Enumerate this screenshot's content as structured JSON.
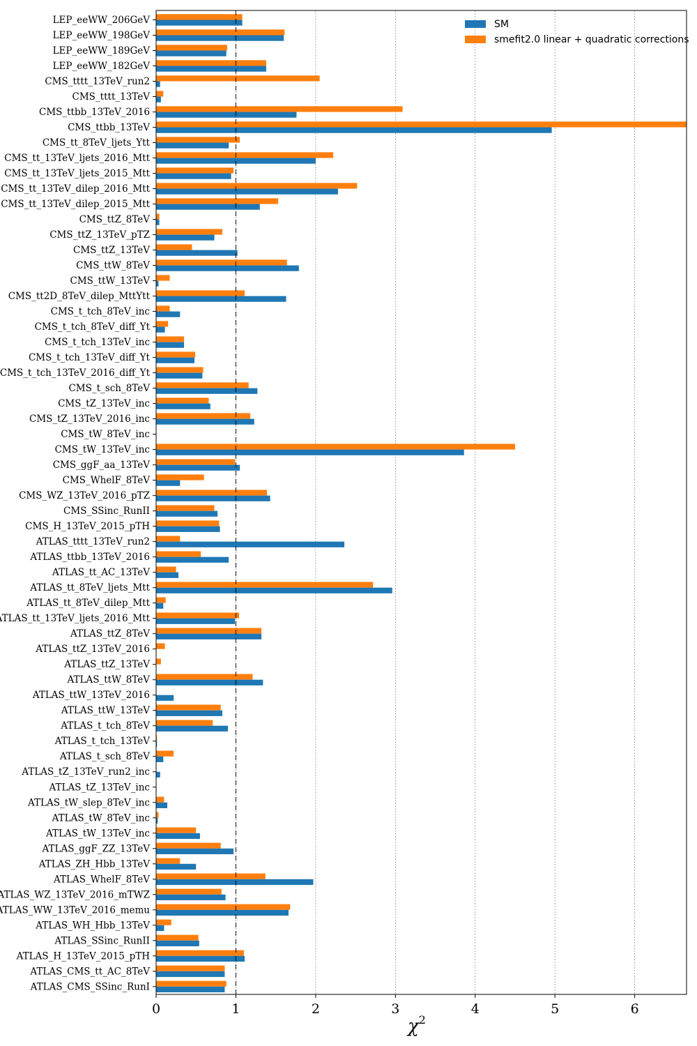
{
  "chart_data": {
    "type": "bar",
    "orientation": "horizontal",
    "xlabel": "χ",
    "xlabel_superscript": "2",
    "xlim": [
      0,
      6.65
    ],
    "xticks": [
      0,
      1,
      2,
      3,
      4,
      5,
      6
    ],
    "reference_line": 1,
    "grid": "vertical dotted",
    "legend_position": "top-right",
    "colors": {
      "sm": "#1f77b4",
      "smefit": "#ff7f0e"
    },
    "categories": [
      "LEP_eeWW_206GeV",
      "LEP_eeWW_198GeV",
      "LEP_eeWW_189GeV",
      "LEP_eeWW_182GeV",
      "CMS_tttt_13TeV_run2",
      "CMS_tttt_13TeV",
      "CMS_ttbb_13TeV_2016",
      "CMS_ttbb_13TeV",
      "CMS_tt_8TeV_ljets_Ytt",
      "CMS_tt_13TeV_ljets_2016_Mtt",
      "CMS_tt_13TeV_ljets_2015_Mtt",
      "CMS_tt_13TeV_dilep_2016_Mtt",
      "CMS_tt_13TeV_dilep_2015_Mtt",
      "CMS_ttZ_8TeV",
      "CMS_ttZ_13TeV_pTZ",
      "CMS_ttZ_13TeV",
      "CMS_ttW_8TeV",
      "CMS_ttW_13TeV",
      "CMS_tt2D_8TeV_dilep_MttYtt",
      "CMS_t_tch_8TeV_inc",
      "CMS_t_tch_8TeV_diff_Yt",
      "CMS_t_tch_13TeV_inc",
      "CMS_t_tch_13TeV_diff_Yt",
      "CMS_t_tch_13TeV_2016_diff_Yt",
      "CMS_t_sch_8TeV",
      "CMS_tZ_13TeV_inc",
      "CMS_tZ_13TeV_2016_inc",
      "CMS_tW_8TeV_inc",
      "CMS_tW_13TeV_inc",
      "CMS_ggF_aa_13TeV",
      "CMS_WhelF_8TeV",
      "CMS_WZ_13TeV_2016_pTZ",
      "CMS_SSinc_RunII",
      "CMS_H_13TeV_2015_pTH",
      "ATLAS_tttt_13TeV_run2",
      "ATLAS_ttbb_13TeV_2016",
      "ATLAS_tt_AC_13TeV",
      "ATLAS_tt_8TeV_ljets_Mtt",
      "ATLAS_tt_8TeV_dilep_Mtt",
      "ATLAS_tt_13TeV_ljets_2016_Mtt",
      "ATLAS_ttZ_8TeV",
      "ATLAS_ttZ_13TeV_2016",
      "ATLAS_ttZ_13TeV",
      "ATLAS_ttW_8TeV",
      "ATLAS_ttW_13TeV_2016",
      "ATLAS_ttW_13TeV",
      "ATLAS_t_tch_8TeV",
      "ATLAS_t_tch_13TeV",
      "ATLAS_t_sch_8TeV",
      "ATLAS_tZ_13TeV_run2_inc",
      "ATLAS_tZ_13TeV_inc",
      "ATLAS_tW_slep_8TeV_inc",
      "ATLAS_tW_8TeV_inc",
      "ATLAS_tW_13TeV_inc",
      "ATLAS_ggF_ZZ_13TeV",
      "ATLAS_ZH_Hbb_13TeV",
      "ATLAS_WhelF_8TeV",
      "ATLAS_WZ_13TeV_2016_mTWZ",
      "ATLAS_WW_13TeV_2016_memu",
      "ATLAS_WH_Hbb_13TeV",
      "ATLAS_SSinc_RunII",
      "ATLAS_H_13TeV_2015_pTH",
      "ATLAS_CMS_tt_AC_8TeV",
      "ATLAS_CMS_SSinc_RunI"
    ],
    "series": [
      {
        "name": "SM",
        "values": [
          1.08,
          1.6,
          0.88,
          1.38,
          0.05,
          0.06,
          1.76,
          4.96,
          0.91,
          2.0,
          0.94,
          2.28,
          1.3,
          0.04,
          0.73,
          1.02,
          1.79,
          0.03,
          1.63,
          0.3,
          0.11,
          0.35,
          0.48,
          0.58,
          1.27,
          0.68,
          1.23,
          0.0,
          3.86,
          1.05,
          0.3,
          1.43,
          0.77,
          0.8,
          2.36,
          0.91,
          0.28,
          2.96,
          0.09,
          0.99,
          1.32,
          0.0,
          0.0,
          1.34,
          0.22,
          0.83,
          0.9,
          0.01,
          0.09,
          0.05,
          0.0,
          0.14,
          0.02,
          0.55,
          0.97,
          0.5,
          1.97,
          0.87,
          1.66,
          0.1,
          0.54,
          1.11,
          0.86,
          0.86
        ]
      },
      {
        "name": "smefit2.0 linear + quadratic corrections",
        "values": [
          1.08,
          1.61,
          0.89,
          1.38,
          2.05,
          0.09,
          3.09,
          6.65,
          1.05,
          2.22,
          0.97,
          2.52,
          1.53,
          0.04,
          0.83,
          0.45,
          1.64,
          0.17,
          1.11,
          0.17,
          0.15,
          0.35,
          0.49,
          0.59,
          1.16,
          0.66,
          1.18,
          0.0,
          4.5,
          0.99,
          0.6,
          1.39,
          0.73,
          0.79,
          0.3,
          0.56,
          0.25,
          2.72,
          0.12,
          1.04,
          1.32,
          0.11,
          0.06,
          1.21,
          0.0,
          0.81,
          0.71,
          0.01,
          0.22,
          0.0,
          0.0,
          0.1,
          0.03,
          0.5,
          0.81,
          0.3,
          1.37,
          0.82,
          1.68,
          0.19,
          0.53,
          1.1,
          0.86,
          0.88
        ]
      }
    ]
  }
}
